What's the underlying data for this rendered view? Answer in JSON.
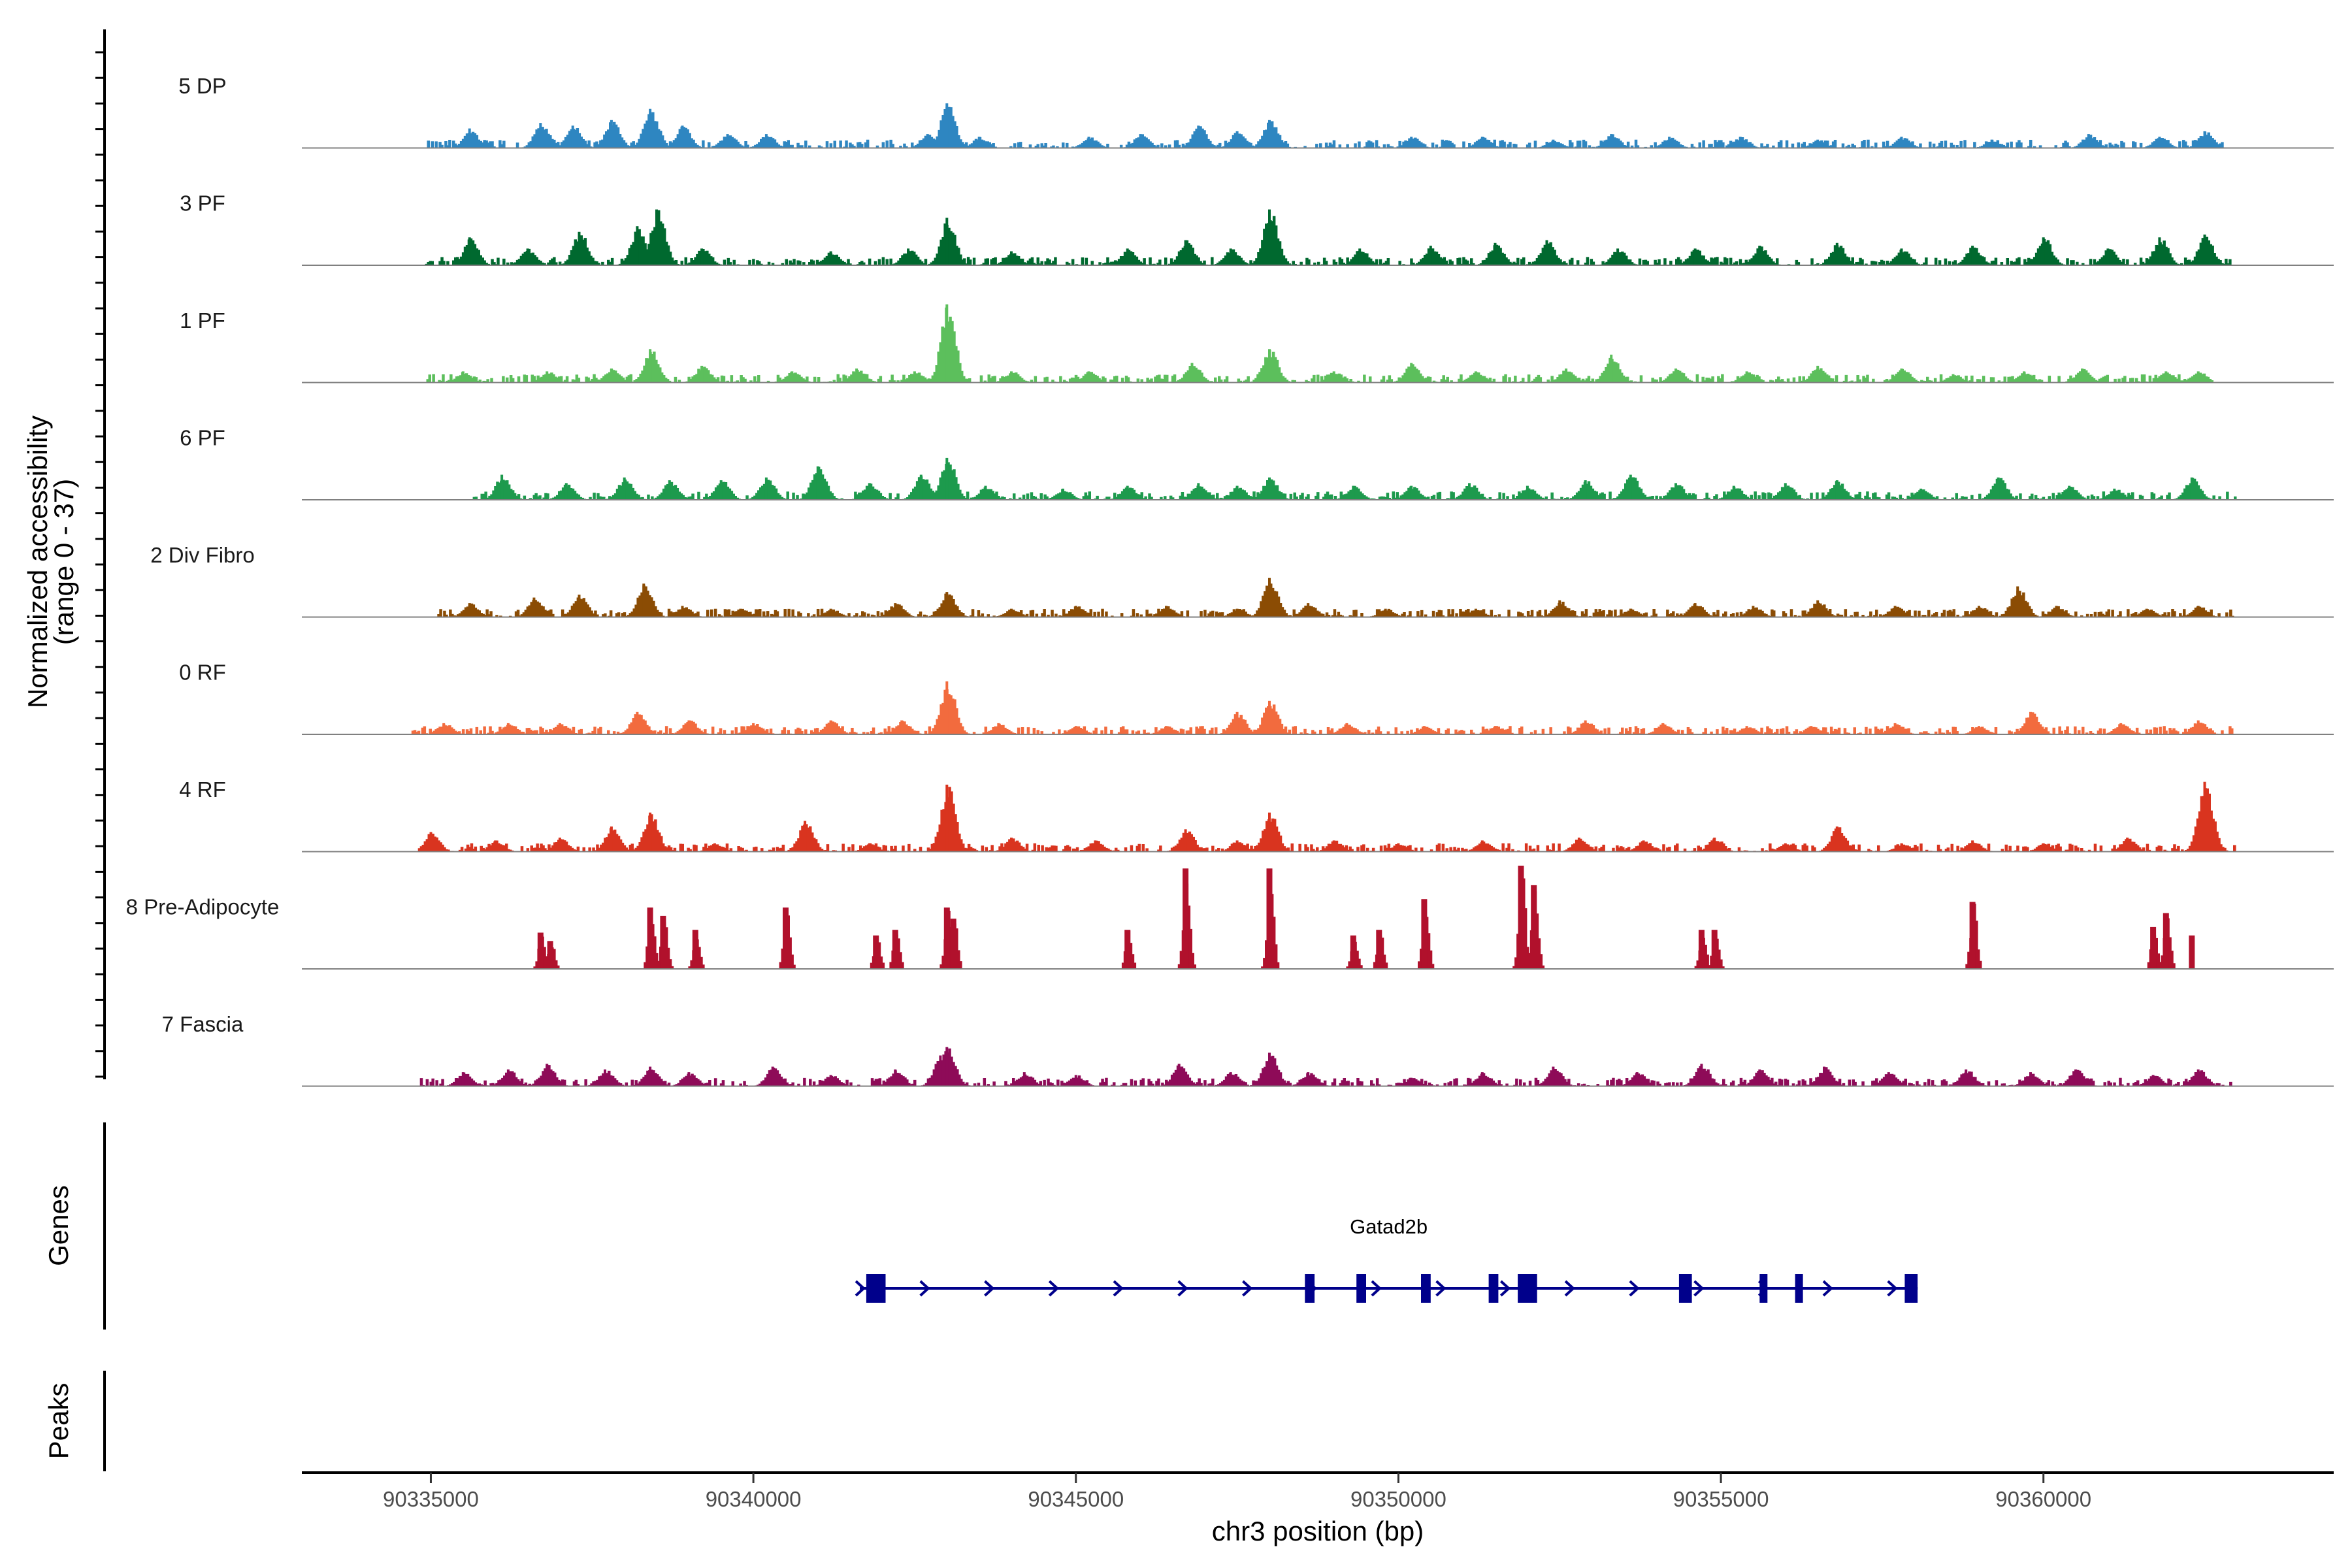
{
  "chart_data": {
    "type": "area",
    "region": "chr3:90333000-90364500",
    "y_axis": {
      "label_line1": "Normalized accessibility",
      "label_line2": "(range 0 - 37)",
      "ylim": [
        0,
        37
      ]
    },
    "x_axis": {
      "label": "chr3 position (bp)",
      "xlim": [
        90333000,
        90364500
      ],
      "ticks": [
        90335000,
        90340000,
        90345000,
        90350000,
        90355000,
        90360000
      ],
      "tick_labels": [
        "90335000",
        "90340000",
        "90345000",
        "90350000",
        "90355000",
        "90360000"
      ]
    },
    "tracks": [
      {
        "name": "5 DP",
        "color": "#2e86c1",
        "baseline": 3,
        "start": 90334850,
        "end": 90362750,
        "peaks": [
          [
            90335600,
            7
          ],
          [
            90336700,
            9
          ],
          [
            90337200,
            8
          ],
          [
            90337800,
            10
          ],
          [
            90338400,
            14
          ],
          [
            90338900,
            8
          ],
          [
            90339600,
            5
          ],
          [
            90340200,
            5
          ],
          [
            90342700,
            5
          ],
          [
            90343000,
            16
          ],
          [
            90343500,
            4
          ],
          [
            90345200,
            4
          ],
          [
            90346000,
            5
          ],
          [
            90346900,
            8
          ],
          [
            90347500,
            6
          ],
          [
            90348000,
            10
          ],
          [
            90350200,
            4
          ],
          [
            90351300,
            4
          ],
          [
            90352400,
            3
          ],
          [
            90353300,
            5
          ],
          [
            90354200,
            4
          ],
          [
            90355300,
            4
          ],
          [
            90356500,
            3
          ],
          [
            90357800,
            4
          ],
          [
            90359200,
            3
          ],
          [
            90360700,
            5
          ],
          [
            90361800,
            4
          ],
          [
            90362500,
            6
          ]
        ]
      },
      {
        "name": "3 PF",
        "color": "#00692f",
        "baseline": 3,
        "start": 90334850,
        "end": 90362950,
        "peaks": [
          [
            90335600,
            10
          ],
          [
            90336500,
            6
          ],
          [
            90337300,
            12
          ],
          [
            90338200,
            14
          ],
          [
            90338500,
            20
          ],
          [
            90339200,
            6
          ],
          [
            90341200,
            5
          ],
          [
            90342400,
            6
          ],
          [
            90343000,
            17
          ],
          [
            90344000,
            5
          ],
          [
            90345800,
            6
          ],
          [
            90346700,
            9
          ],
          [
            90347400,
            6
          ],
          [
            90348000,
            20
          ],
          [
            90349400,
            6
          ],
          [
            90350500,
            7
          ],
          [
            90351500,
            8
          ],
          [
            90352300,
            9
          ],
          [
            90353400,
            6
          ],
          [
            90354600,
            6
          ],
          [
            90355600,
            7
          ],
          [
            90356800,
            8
          ],
          [
            90357800,
            6
          ],
          [
            90358900,
            7
          ],
          [
            90360000,
            10
          ],
          [
            90361000,
            6
          ],
          [
            90361800,
            10
          ],
          [
            90362500,
            11
          ]
        ]
      },
      {
        "name": "1 PF",
        "color": "#5cbf5c",
        "baseline": 3,
        "start": 90334900,
        "end": 90362600,
        "peaks": [
          [
            90335500,
            4
          ],
          [
            90336800,
            4
          ],
          [
            90337800,
            5
          ],
          [
            90338400,
            12
          ],
          [
            90339200,
            6
          ],
          [
            90340600,
            4
          ],
          [
            90341600,
            5
          ],
          [
            90342500,
            4
          ],
          [
            90343000,
            28
          ],
          [
            90344000,
            4
          ],
          [
            90345200,
            4
          ],
          [
            90346800,
            7
          ],
          [
            90348000,
            12
          ],
          [
            90349000,
            4
          ],
          [
            90350200,
            7
          ],
          [
            90351200,
            4
          ],
          [
            90352600,
            5
          ],
          [
            90353300,
            10
          ],
          [
            90354300,
            5
          ],
          [
            90355400,
            4
          ],
          [
            90356500,
            6
          ],
          [
            90357800,
            5
          ],
          [
            90358600,
            3
          ],
          [
            90359700,
            4
          ],
          [
            90360600,
            5
          ],
          [
            90361900,
            4
          ],
          [
            90362400,
            4
          ]
        ]
      },
      {
        "name": "6 PF",
        "color": "#1d9a4d",
        "baseline": 3,
        "start": 90335650,
        "end": 90362950,
        "peaks": [
          [
            90336100,
            9
          ],
          [
            90337100,
            6
          ],
          [
            90338000,
            8
          ],
          [
            90338700,
            7
          ],
          [
            90339500,
            7
          ],
          [
            90340200,
            8
          ],
          [
            90341000,
            12
          ],
          [
            90341800,
            6
          ],
          [
            90342600,
            9
          ],
          [
            90343000,
            15
          ],
          [
            90343600,
            5
          ],
          [
            90344800,
            4
          ],
          [
            90345800,
            5
          ],
          [
            90346900,
            6
          ],
          [
            90347500,
            5
          ],
          [
            90348000,
            8
          ],
          [
            90349300,
            5
          ],
          [
            90350200,
            5
          ],
          [
            90351100,
            6
          ],
          [
            90352000,
            5
          ],
          [
            90352900,
            7
          ],
          [
            90353600,
            9
          ],
          [
            90354300,
            6
          ],
          [
            90355200,
            5
          ],
          [
            90356000,
            6
          ],
          [
            90356800,
            7
          ],
          [
            90358100,
            4
          ],
          [
            90359300,
            8
          ],
          [
            90360400,
            5
          ],
          [
            90361100,
            4
          ],
          [
            90362300,
            8
          ]
        ]
      },
      {
        "name": "2 Div Fibro",
        "color": "#8b4c04",
        "baseline": 3,
        "start": 90335100,
        "end": 90362950,
        "peaks": [
          [
            90335600,
            5
          ],
          [
            90336600,
            7
          ],
          [
            90337300,
            8
          ],
          [
            90338300,
            12
          ],
          [
            90338900,
            4
          ],
          [
            90339800,
            3
          ],
          [
            90341200,
            3
          ],
          [
            90342200,
            5
          ],
          [
            90343000,
            9
          ],
          [
            90344000,
            3
          ],
          [
            90345000,
            4
          ],
          [
            90346400,
            4
          ],
          [
            90347500,
            3
          ],
          [
            90348000,
            14
          ],
          [
            90348600,
            5
          ],
          [
            90349800,
            3
          ],
          [
            90351200,
            3
          ],
          [
            90352500,
            6
          ],
          [
            90353600,
            3
          ],
          [
            90354600,
            5
          ],
          [
            90355500,
            4
          ],
          [
            90356500,
            6
          ],
          [
            90357700,
            4
          ],
          [
            90359000,
            4
          ],
          [
            90359600,
            11
          ],
          [
            90360200,
            4
          ],
          [
            90361600,
            3
          ],
          [
            90362400,
            4
          ]
        ]
      },
      {
        "name": "0 RF",
        "color": "#f26b3e",
        "baseline": 3,
        "start": 90334700,
        "end": 90362950,
        "peaks": [
          [
            90335200,
            4
          ],
          [
            90336200,
            4
          ],
          [
            90337000,
            4
          ],
          [
            90338200,
            8
          ],
          [
            90339000,
            5
          ],
          [
            90340000,
            4
          ],
          [
            90341200,
            5
          ],
          [
            90342300,
            5
          ],
          [
            90343000,
            19
          ],
          [
            90343800,
            4
          ],
          [
            90345000,
            3
          ],
          [
            90346400,
            3
          ],
          [
            90347500,
            8
          ],
          [
            90348000,
            12
          ],
          [
            90349200,
            4
          ],
          [
            90350400,
            3
          ],
          [
            90351500,
            3
          ],
          [
            90352900,
            5
          ],
          [
            90354100,
            4
          ],
          [
            90355400,
            3
          ],
          [
            90356400,
            3
          ],
          [
            90357700,
            4
          ],
          [
            90359000,
            3
          ],
          [
            90359800,
            8
          ],
          [
            90361200,
            4
          ],
          [
            90362400,
            5
          ]
        ]
      },
      {
        "name": "4 RF",
        "color": "#d9341f",
        "baseline": 3,
        "start": 90334800,
        "end": 90362950,
        "peaks": [
          [
            90335000,
            7
          ],
          [
            90336000,
            4
          ],
          [
            90337000,
            5
          ],
          [
            90337800,
            9
          ],
          [
            90338400,
            14
          ],
          [
            90339400,
            3
          ],
          [
            90340800,
            11
          ],
          [
            90341800,
            3
          ],
          [
            90343000,
            24
          ],
          [
            90344000,
            5
          ],
          [
            90345300,
            4
          ],
          [
            90346700,
            8
          ],
          [
            90347500,
            4
          ],
          [
            90348000,
            14
          ],
          [
            90349000,
            4
          ],
          [
            90350000,
            3
          ],
          [
            90351300,
            4
          ],
          [
            90352800,
            5
          ],
          [
            90353800,
            4
          ],
          [
            90354900,
            5
          ],
          [
            90356000,
            3
          ],
          [
            90356800,
            9
          ],
          [
            90357800,
            3
          ],
          [
            90358900,
            4
          ],
          [
            90360000,
            3
          ],
          [
            90361300,
            5
          ],
          [
            90362500,
            25
          ]
        ]
      },
      {
        "name": "8 Pre-Adipocyte",
        "color": "#b1112c",
        "baseline": 0,
        "start": 90336500,
        "end": 90362200,
        "peaks": [
          [
            90336700,
            13
          ],
          [
            90336850,
            10
          ],
          [
            90338400,
            22
          ],
          [
            90338600,
            19
          ],
          [
            90339100,
            14
          ],
          [
            90340500,
            22
          ],
          [
            90341900,
            12
          ],
          [
            90342200,
            14
          ],
          [
            90343000,
            22
          ],
          [
            90343100,
            18
          ],
          [
            90345800,
            14
          ],
          [
            90346700,
            36
          ],
          [
            90348000,
            36
          ],
          [
            90349300,
            12
          ],
          [
            90349700,
            14
          ],
          [
            90350400,
            25
          ],
          [
            90351900,
            37
          ],
          [
            90352100,
            30
          ],
          [
            90354700,
            14
          ],
          [
            90354900,
            14
          ],
          [
            90358900,
            24
          ],
          [
            90361700,
            15
          ],
          [
            90361900,
            20
          ],
          [
            90362300,
            12
          ]
        ]
      },
      {
        "name": "7 Fascia",
        "color": "#8e0b58",
        "baseline": 3,
        "start": 90334800,
        "end": 90362950,
        "peaks": [
          [
            90335500,
            5
          ],
          [
            90336200,
            6
          ],
          [
            90336800,
            8
          ],
          [
            90337700,
            6
          ],
          [
            90338400,
            7
          ],
          [
            90339000,
            5
          ],
          [
            90340300,
            7
          ],
          [
            90341200,
            4
          ],
          [
            90342200,
            6
          ],
          [
            90342900,
            11
          ],
          [
            90343000,
            14
          ],
          [
            90344200,
            5
          ],
          [
            90345000,
            4
          ],
          [
            90346600,
            8
          ],
          [
            90347400,
            5
          ],
          [
            90348000,
            12
          ],
          [
            90348600,
            5
          ],
          [
            90350200,
            3
          ],
          [
            90351300,
            5
          ],
          [
            90352400,
            7
          ],
          [
            90353700,
            5
          ],
          [
            90354700,
            8
          ],
          [
            90355600,
            6
          ],
          [
            90356600,
            7
          ],
          [
            90357600,
            5
          ],
          [
            90358800,
            6
          ],
          [
            90359800,
            5
          ],
          [
            90360500,
            6
          ],
          [
            90361700,
            4
          ],
          [
            90362400,
            6
          ]
        ]
      }
    ],
    "genes_track": {
      "label": "Genes",
      "gene": "Gatad2b",
      "strand": "+",
      "color": "#00008b",
      "start": 90341650,
      "end": 90358050,
      "exons": [
        [
          90341750,
          90342050
        ],
        [
          90348550,
          90348700
        ],
        [
          90349350,
          90349500
        ],
        [
          90350350,
          90350500
        ],
        [
          90351400,
          90351550
        ],
        [
          90351850,
          90352150
        ],
        [
          90354350,
          90354550
        ],
        [
          90355600,
          90355720
        ],
        [
          90356150,
          90356270
        ],
        [
          90357850,
          90358050
        ]
      ]
    },
    "peaks_track": {
      "label": "Peaks"
    }
  }
}
